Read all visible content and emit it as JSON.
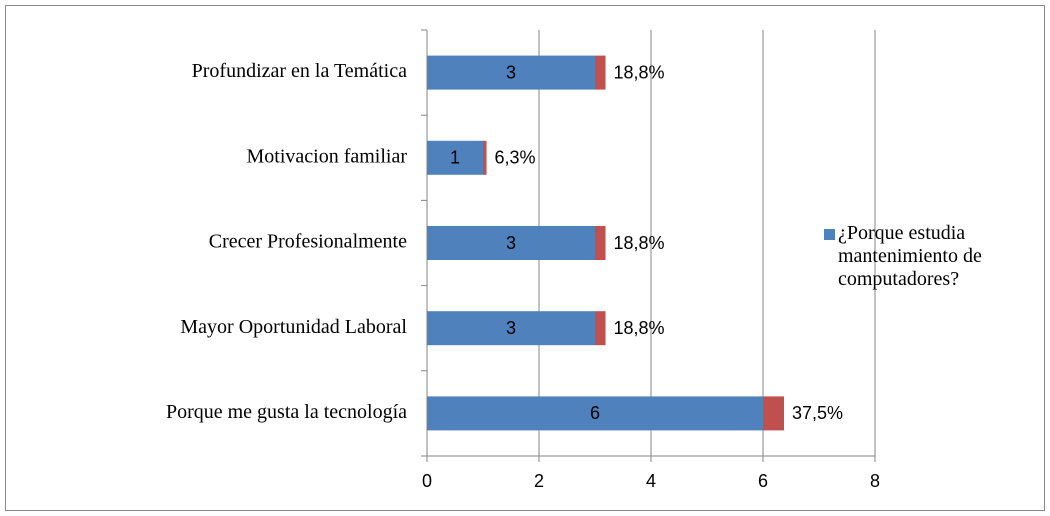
{
  "chart_data": {
    "type": "stacked-barh",
    "categories": [
      "Profundizar en la Temática",
      "Motivacion familiar",
      "Crecer Profesionalmente",
      "Mayor Oportunidad Laboral",
      "Porque me gusta la tecnología"
    ],
    "series": [
      {
        "name": "¿Porque estudia mantenimiento de computadores?",
        "color": "#4f81bd",
        "values": [
          3,
          1,
          3,
          3,
          6
        ]
      },
      {
        "color": "#c0504d",
        "values": [
          0.188,
          0.063,
          0.188,
          0.188,
          0.375
        ],
        "value_labels": [
          "18,8%",
          "6,3%",
          "18,8%",
          "18,8%",
          "37,5%"
        ]
      }
    ],
    "xlim": [
      0,
      8
    ],
    "xticks": [
      0,
      2,
      4,
      6,
      8
    ],
    "grid": true,
    "legend": "right"
  }
}
